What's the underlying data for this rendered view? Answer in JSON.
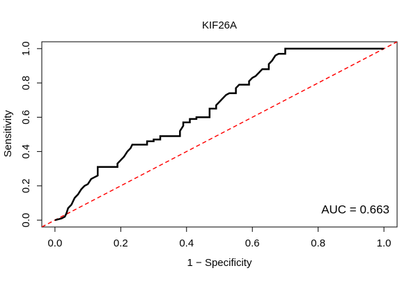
{
  "chart_data": {
    "type": "line",
    "title": "KIF26A",
    "xlabel": "1 − Specificity",
    "ylabel": "Sensitivity",
    "annotation": "AUC = 0.663",
    "xlim": [
      -0.04,
      1.04
    ],
    "ylim": [
      -0.04,
      1.04
    ],
    "xticks": [
      {
        "value": 0,
        "label": "0.0"
      },
      0.2,
      0.4,
      0.6,
      0.8,
      {
        "value": 1,
        "label": "1.0"
      }
    ],
    "yticks": [
      {
        "value": 0,
        "label": "0.0"
      },
      0.2,
      0.4,
      0.6,
      0.8,
      {
        "value": 1,
        "label": "1.0"
      }
    ],
    "series": [
      {
        "color": "#000000",
        "linestyle": "solid",
        "x": [
          0,
          0.02,
          0.03,
          0.035,
          0.04,
          0.05,
          0.06,
          0.07,
          0.08,
          0.09,
          0.1,
          0.11,
          0.12,
          0.13,
          0.13,
          0.19,
          0.19,
          0.2,
          0.21,
          0.22,
          0.23,
          0.235,
          0.28,
          0.28,
          0.3,
          0.3,
          0.32,
          0.32,
          0.38,
          0.38,
          0.39,
          0.39,
          0.41,
          0.41,
          0.43,
          0.43,
          0.47,
          0.47,
          0.49,
          0.49,
          0.5,
          0.51,
          0.52,
          0.53,
          0.55,
          0.55,
          0.56,
          0.59,
          0.59,
          0.6,
          0.61,
          0.62,
          0.63,
          0.65,
          0.65,
          0.66,
          0.67,
          0.68,
          0.7,
          0.7,
          1
        ],
        "values": [
          0,
          0.01,
          0.02,
          0.04,
          0.07,
          0.09,
          0.13,
          0.15,
          0.18,
          0.2,
          0.21,
          0.24,
          0.25,
          0.26,
          0.31,
          0.31,
          0.33,
          0.35,
          0.37,
          0.4,
          0.42,
          0.44,
          0.44,
          0.46,
          0.46,
          0.47,
          0.47,
          0.49,
          0.49,
          0.52,
          0.55,
          0.57,
          0.57,
          0.59,
          0.59,
          0.6,
          0.6,
          0.65,
          0.65,
          0.67,
          0.69,
          0.71,
          0.73,
          0.74,
          0.74,
          0.77,
          0.79,
          0.79,
          0.81,
          0.83,
          0.84,
          0.86,
          0.88,
          0.88,
          0.91,
          0.93,
          0.96,
          0.97,
          0.97,
          1,
          1
        ]
      },
      {
        "color": "#ff0000",
        "linestyle": "dashed",
        "x": [
          -0.04,
          1.04
        ],
        "values": [
          -0.04,
          1.04
        ]
      }
    ]
  }
}
